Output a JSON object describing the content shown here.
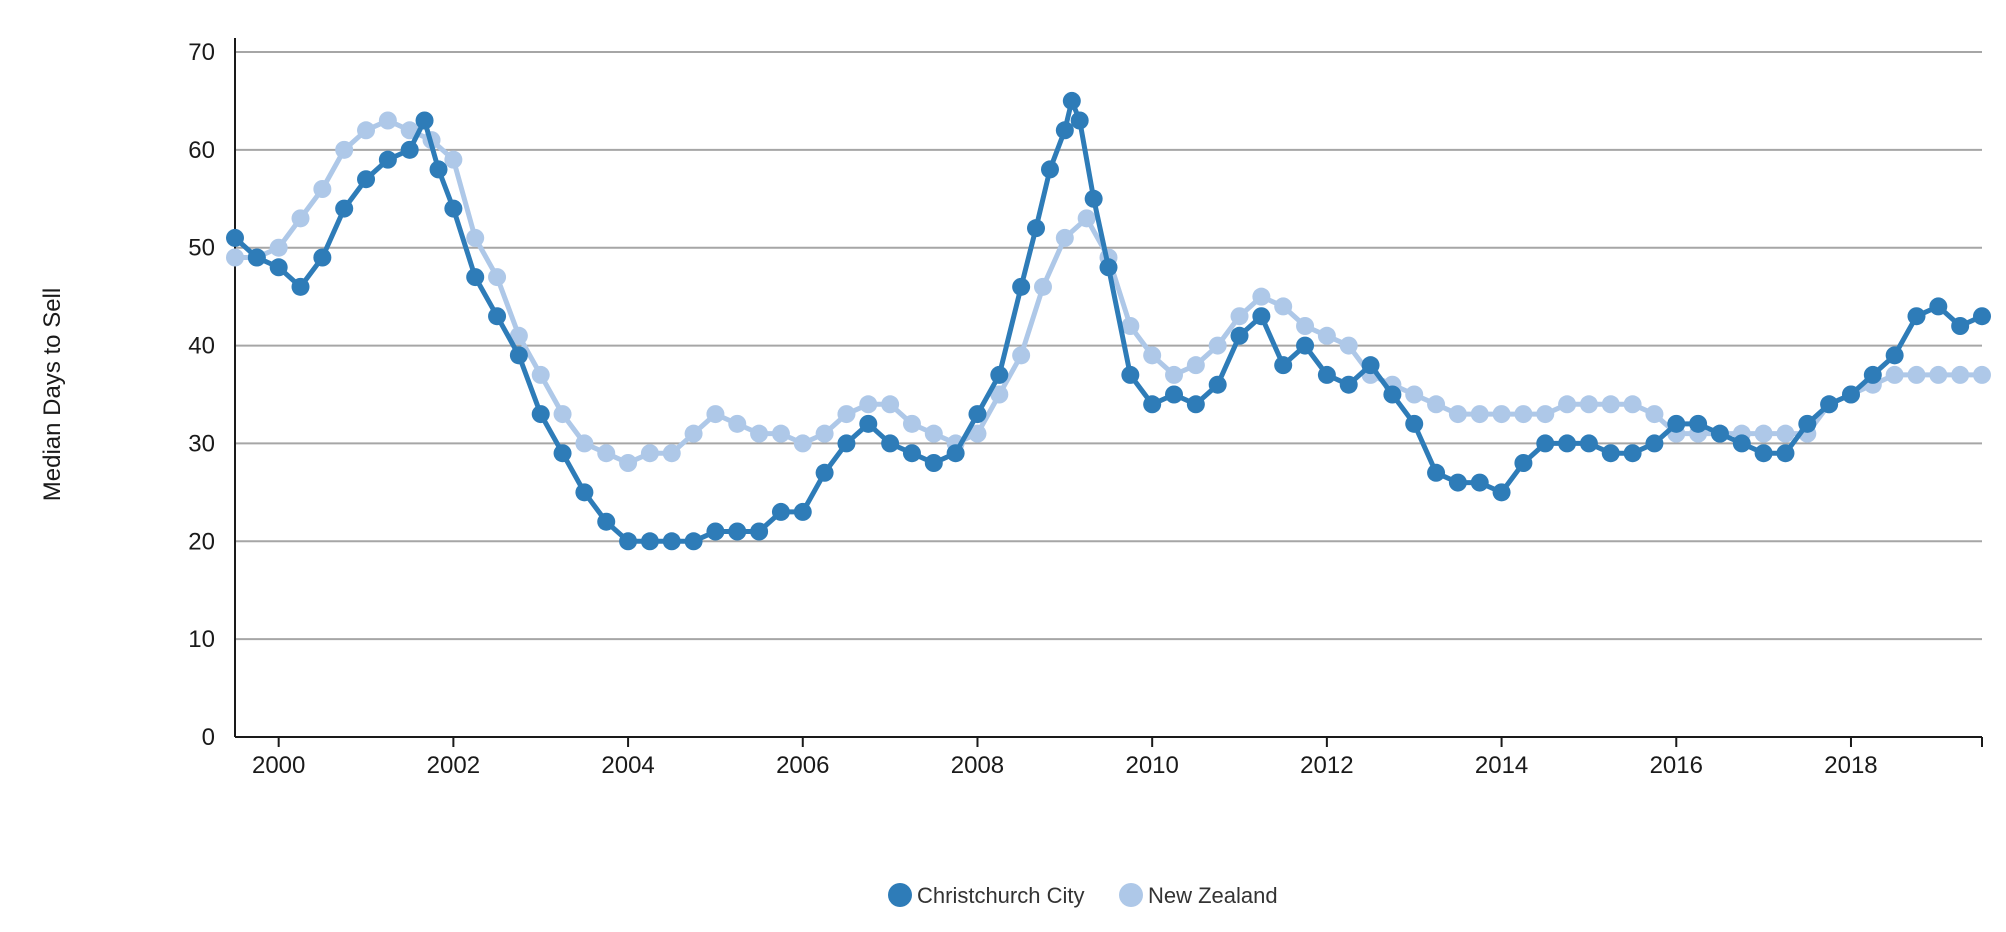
{
  "chart_data": {
    "type": "line",
    "ylabel": "Median Days to Sell",
    "xlabel": "",
    "ylim": [
      0,
      70
    ],
    "xlim": [
      1999.5,
      2019.5
    ],
    "y_ticks": [
      0,
      10,
      20,
      30,
      40,
      50,
      60,
      70
    ],
    "x_ticks": [
      2000,
      2002,
      2004,
      2006,
      2008,
      2010,
      2012,
      2014,
      2016,
      2018
    ],
    "grid": true,
    "legend_position": "bottom-center",
    "colors": {
      "christchurch": "#2e7cb8",
      "new_zealand": "#aec8e8",
      "grid": "#a6a6a6",
      "axis": "#1a1a1a"
    },
    "series": [
      {
        "name": "Christchurch City",
        "x": [
          1999.5,
          1999.75,
          2000.0,
          2000.25,
          2000.5,
          2000.75,
          2001.0,
          2001.25,
          2001.5,
          2001.67,
          2001.83,
          2002.0,
          2002.25,
          2002.5,
          2002.75,
          2003.0,
          2003.25,
          2003.5,
          2003.75,
          2004.0,
          2004.25,
          2004.5,
          2004.75,
          2005.0,
          2005.25,
          2005.5,
          2005.75,
          2006.0,
          2006.25,
          2006.5,
          2006.75,
          2007.0,
          2007.25,
          2007.5,
          2007.75,
          2008.0,
          2008.25,
          2008.5,
          2008.67,
          2008.83,
          2009.0,
          2009.08,
          2009.17,
          2009.33,
          2009.5,
          2009.75,
          2010.0,
          2010.25,
          2010.5,
          2010.75,
          2011.0,
          2011.25,
          2011.5,
          2011.75,
          2012.0,
          2012.25,
          2012.5,
          2012.75,
          2013.0,
          2013.25,
          2013.5,
          2013.75,
          2014.0,
          2014.25,
          2014.5,
          2014.75,
          2015.0,
          2015.25,
          2015.5,
          2015.75,
          2016.0,
          2016.25,
          2016.5,
          2016.75,
          2017.0,
          2017.25,
          2017.5,
          2017.75,
          2018.0,
          2018.25,
          2018.5,
          2018.75,
          2019.0,
          2019.25,
          2019.5
        ],
        "values": [
          51,
          49,
          48,
          46,
          49,
          54,
          57,
          59,
          60,
          63,
          58,
          54,
          47,
          43,
          39,
          33,
          29,
          25,
          22,
          20,
          20,
          20,
          20,
          21,
          21,
          21,
          23,
          23,
          27,
          30,
          32,
          30,
          29,
          28,
          29,
          33,
          37,
          46,
          52,
          58,
          62,
          65,
          63,
          55,
          48,
          37,
          34,
          35,
          34,
          36,
          41,
          43,
          38,
          40,
          37,
          36,
          38,
          35,
          32,
          27,
          26,
          26,
          25,
          28,
          30,
          30,
          30,
          29,
          29,
          30,
          32,
          32,
          31,
          30,
          29,
          29,
          32,
          34,
          35,
          37,
          39,
          43,
          44,
          42,
          43
        ]
      },
      {
        "name": "New Zealand",
        "x": [
          1999.5,
          1999.75,
          2000.0,
          2000.25,
          2000.5,
          2000.75,
          2001.0,
          2001.25,
          2001.5,
          2001.75,
          2002.0,
          2002.25,
          2002.5,
          2002.75,
          2003.0,
          2003.25,
          2003.5,
          2003.75,
          2004.0,
          2004.25,
          2004.5,
          2004.75,
          2005.0,
          2005.25,
          2005.5,
          2005.75,
          2006.0,
          2006.25,
          2006.5,
          2006.75,
          2007.0,
          2007.25,
          2007.5,
          2007.75,
          2008.0,
          2008.25,
          2008.5,
          2008.75,
          2009.0,
          2009.25,
          2009.5,
          2009.75,
          2010.0,
          2010.25,
          2010.5,
          2010.75,
          2011.0,
          2011.25,
          2011.5,
          2011.75,
          2012.0,
          2012.25,
          2012.5,
          2012.75,
          2013.0,
          2013.25,
          2013.5,
          2013.75,
          2014.0,
          2014.25,
          2014.5,
          2014.75,
          2015.0,
          2015.25,
          2015.5,
          2015.75,
          2016.0,
          2016.25,
          2016.5,
          2016.75,
          2017.0,
          2017.25,
          2017.5,
          2017.75,
          2018.0,
          2018.25,
          2018.5,
          2018.75,
          2019.0,
          2019.25,
          2019.5
        ],
        "values": [
          49,
          49,
          50,
          53,
          56,
          60,
          62,
          63,
          62,
          61,
          59,
          51,
          47,
          41,
          37,
          33,
          30,
          29,
          28,
          29,
          29,
          31,
          33,
          32,
          31,
          31,
          30,
          31,
          33,
          34,
          34,
          32,
          31,
          30,
          31,
          35,
          39,
          46,
          51,
          53,
          49,
          42,
          39,
          37,
          38,
          40,
          43,
          45,
          44,
          42,
          41,
          40,
          37,
          36,
          35,
          34,
          33,
          33,
          33,
          33,
          33,
          34,
          34,
          34,
          34,
          33,
          31,
          31,
          31,
          31,
          31,
          31,
          31,
          34,
          35,
          36,
          37,
          37,
          37,
          37,
          37
        ]
      }
    ]
  }
}
